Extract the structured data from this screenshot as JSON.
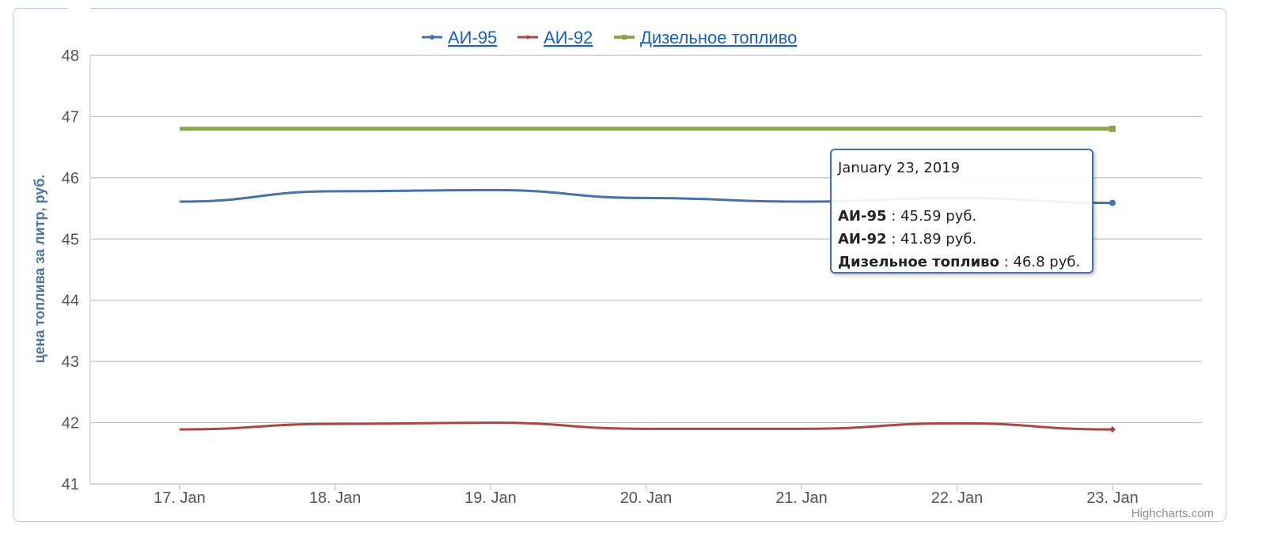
{
  "chart_data": {
    "type": "line",
    "title": "",
    "xlabel": "",
    "ylabel": "цена топлива за литр, руб.",
    "categories": [
      "17. Jan",
      "18. Jan",
      "19. Jan",
      "20. Jan",
      "21. Jan",
      "22. Jan",
      "23. Jan"
    ],
    "ylim": [
      41,
      48
    ],
    "yticks": [
      41,
      42,
      43,
      44,
      45,
      46,
      47,
      48
    ],
    "grid": true,
    "legend_position": "top-center",
    "series": [
      {
        "name": "АИ-95",
        "color": "#4572a7",
        "values": [
          45.61,
          45.78,
          45.8,
          45.67,
          45.61,
          45.67,
          45.59
        ]
      },
      {
        "name": "АИ-92",
        "color": "#aa4643",
        "values": [
          41.89,
          41.98,
          42.0,
          41.9,
          41.9,
          41.99,
          41.89
        ]
      },
      {
        "name": "Дизельное топливо",
        "color": "#89a54e",
        "values": [
          46.8,
          46.8,
          46.8,
          46.8,
          46.8,
          46.8,
          46.8
        ]
      }
    ]
  },
  "tooltip": {
    "date": "January 23, 2019",
    "rows": [
      {
        "name": "АИ-95",
        "value": ": 45.59 руб."
      },
      {
        "name": "АИ-92",
        "value": ": 41.89 руб."
      },
      {
        "name": "Дизельное топливо",
        "value": ": 46.8 руб."
      }
    ]
  },
  "credits": "Highcharts.com"
}
